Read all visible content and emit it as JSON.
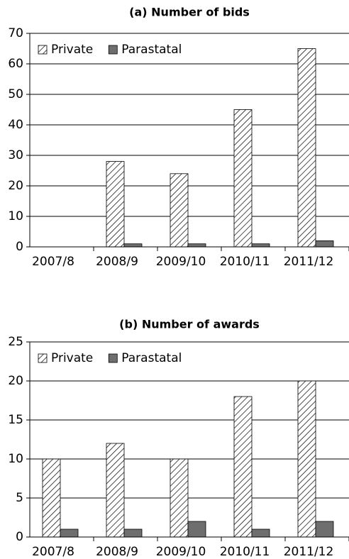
{
  "chart_data": [
    {
      "type": "bar",
      "title": "(a) Number of bids",
      "categories": [
        "2007/8",
        "2008/9",
        "2009/10",
        "2010/11",
        "2011/12"
      ],
      "series": [
        {
          "name": "Private",
          "color": "#ffffff",
          "pattern": "hatch",
          "values": [
            0,
            28,
            24,
            45,
            65
          ]
        },
        {
          "name": "Parastatal",
          "color": "#6e6e6e",
          "values": [
            0,
            1,
            1,
            1,
            2
          ]
        }
      ],
      "ylim": [
        0,
        70
      ],
      "yticks": [
        0,
        10,
        20,
        30,
        40,
        50,
        60,
        70
      ],
      "grid": true,
      "legend": "upper left"
    },
    {
      "type": "bar",
      "title": "(b) Number of awards",
      "categories": [
        "2007/8",
        "2008/9",
        "2009/10",
        "2010/11",
        "2011/12"
      ],
      "series": [
        {
          "name": "Private",
          "color": "#ffffff",
          "pattern": "hatch",
          "values": [
            10,
            12,
            10,
            18,
            20
          ]
        },
        {
          "name": "Parastatal",
          "color": "#6e6e6e",
          "values": [
            1,
            1,
            2,
            1,
            2
          ]
        }
      ],
      "ylim": [
        0,
        25
      ],
      "yticks": [
        0,
        5,
        10,
        15,
        20,
        25
      ],
      "grid": true,
      "legend": "upper left"
    }
  ]
}
